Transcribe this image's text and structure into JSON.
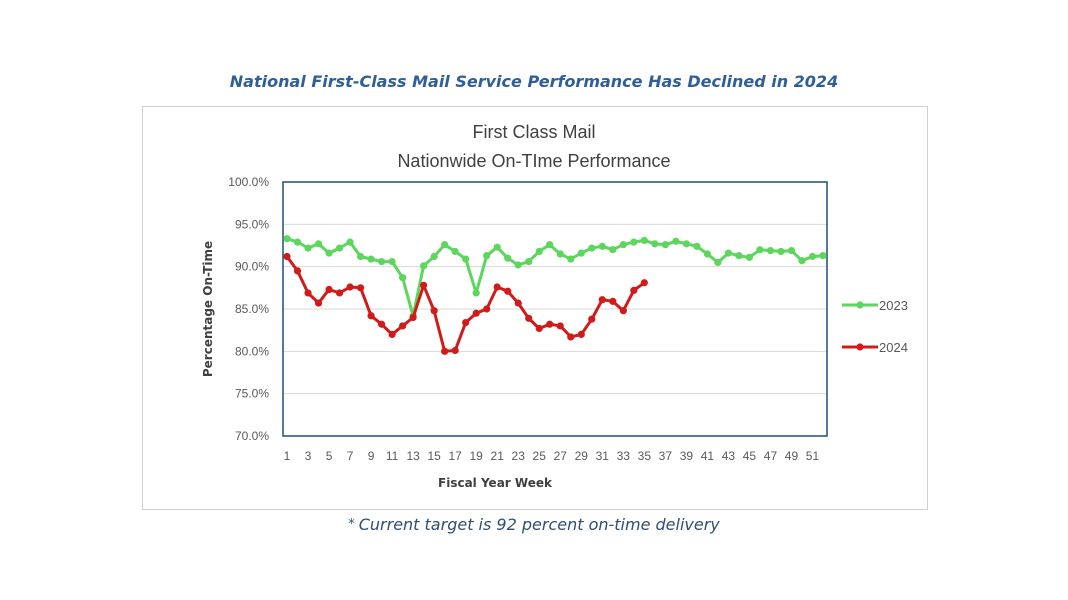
{
  "headline": "National First-Class Mail Service Performance Has Declined in 2024",
  "footnote": {
    "star": "*",
    "text": "Current target is 92 percent on-time delivery"
  },
  "chart_data": {
    "type": "line",
    "title_line1": "First Class Mail",
    "title_line2": "Nationwide On-TIme Performance",
    "xlabel": "Fiscal Year Week",
    "ylabel": "Percentage On-Time",
    "ylim": [
      70,
      100
    ],
    "yticks": [
      70,
      75,
      80,
      85,
      90,
      95,
      100
    ],
    "ytick_labels": [
      "70.0%",
      "75.0%",
      "80.0%",
      "85.0%",
      "90.0%",
      "95.0%",
      "100.0%"
    ],
    "xlim": [
      1,
      52
    ],
    "xtick_labels": [
      "1",
      "3",
      "5",
      "7",
      "9",
      "11",
      "13",
      "15",
      "17",
      "19",
      "21",
      "23",
      "25",
      "27",
      "29",
      "31",
      "33",
      "35",
      "37",
      "39",
      "41",
      "43",
      "45",
      "47",
      "49",
      "51"
    ],
    "grid": true,
    "legend_position": "right",
    "series": [
      {
        "name": "2023",
        "color": "#5cd65c",
        "x": [
          1,
          2,
          3,
          4,
          5,
          6,
          7,
          8,
          9,
          10,
          11,
          12,
          13,
          14,
          15,
          16,
          17,
          18,
          19,
          20,
          21,
          22,
          23,
          24,
          25,
          26,
          27,
          28,
          29,
          30,
          31,
          32,
          33,
          34,
          35,
          36,
          37,
          38,
          39,
          40,
          41,
          42,
          43,
          44,
          45,
          46,
          47,
          48,
          49,
          50,
          51,
          52
        ],
        "values": [
          93.3,
          92.9,
          92.2,
          92.7,
          91.6,
          92.2,
          92.9,
          91.2,
          90.9,
          90.6,
          90.6,
          88.7,
          84.2,
          90.1,
          91.2,
          92.6,
          91.8,
          90.9,
          86.9,
          91.3,
          92.3,
          91.0,
          90.2,
          90.6,
          91.8,
          92.6,
          91.5,
          90.9,
          91.6,
          92.2,
          92.4,
          92.0,
          92.6,
          92.9,
          93.1,
          92.7,
          92.6,
          93.0,
          92.7,
          92.4,
          91.5,
          90.5,
          91.6,
          91.3,
          91.1,
          92.0,
          91.9,
          91.8,
          91.9,
          90.7,
          91.2,
          91.3
        ]
      },
      {
        "name": "2024",
        "color": "#d11a1a",
        "x": [
          1,
          2,
          3,
          4,
          5,
          6,
          7,
          8,
          9,
          10,
          11,
          12,
          13,
          14,
          15,
          16,
          17,
          18,
          19,
          20,
          21,
          22,
          23,
          24,
          25,
          26,
          27,
          28,
          29,
          30,
          31,
          32,
          33,
          34,
          35
        ],
        "values": [
          91.2,
          89.5,
          86.9,
          85.7,
          87.3,
          86.9,
          87.6,
          87.5,
          84.2,
          83.2,
          82.0,
          83.0,
          84.0,
          87.8,
          84.8,
          80.0,
          80.1,
          83.4,
          84.5,
          85.0,
          87.6,
          87.1,
          85.7,
          83.9,
          82.7,
          83.2,
          83.0,
          81.7,
          82.0,
          83.8,
          86.1,
          85.9,
          84.8,
          87.2,
          88.1
        ]
      }
    ]
  }
}
